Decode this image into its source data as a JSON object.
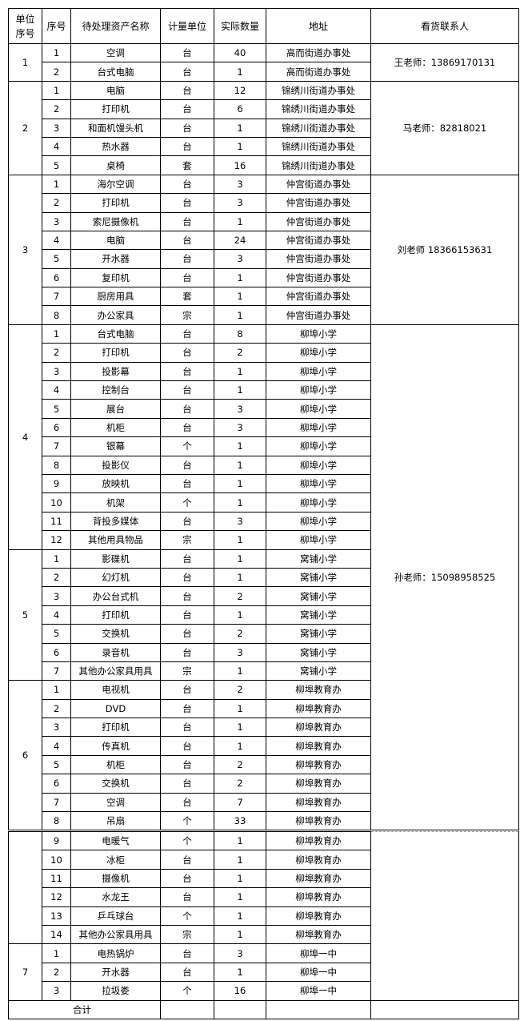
{
  "headers": [
    "单位\n序号",
    "序号",
    "待处理资产名称",
    "计量单位",
    "实际数量",
    "地址",
    "看货联系人"
  ],
  "groups": [
    {
      "unit": "1",
      "contact": "王老师：13869170131",
      "items": [
        [
          "1",
          "空调",
          "台",
          "40",
          "高而街道办事处"
        ],
        [
          "2",
          "台式电脑",
          "台",
          "1",
          "高而街道办事处"
        ]
      ]
    },
    {
      "unit": "2",
      "contact": "马老师：82818021",
      "items": [
        [
          "1",
          "电脑",
          "台",
          "12",
          "锦绣川街道办事处"
        ],
        [
          "2",
          "打印机",
          "台",
          "6",
          "锦绣川街道办事处"
        ],
        [
          "3",
          "和面机馒头机",
          "台",
          "1",
          "锦绣川街道办事处"
        ],
        [
          "4",
          "热水器",
          "台",
          "1",
          "锦绣川街道办事处"
        ],
        [
          "5",
          "桌椅",
          "套",
          "16",
          "锦绣川街道办事处"
        ]
      ]
    },
    {
      "unit": "3",
      "contact": "刘老师 18366153631",
      "items": [
        [
          "1",
          "海尔空调",
          "台",
          "3",
          "仲宫街道办事处"
        ],
        [
          "2",
          "打印机",
          "台",
          "3",
          "仲宫街道办事处"
        ],
        [
          "3",
          "索尼摄像机",
          "台",
          "1",
          "仲宫街道办事处"
        ],
        [
          "4",
          "电脑",
          "台",
          "24",
          "仲宫街道办事处"
        ],
        [
          "5",
          "开水器",
          "台",
          "3",
          "仲宫街道办事处"
        ],
        [
          "6",
          "复印机",
          "台",
          "1",
          "仲宫街道办事处"
        ],
        [
          "7",
          "厨房用具",
          "套",
          "1",
          "仲宫街道办事处"
        ],
        [
          "8",
          "办公家具",
          "宗",
          "1",
          "仲宫街道办事处"
        ]
      ]
    },
    {
      "unit": "4",
      "contact": "孙老师：15098958525",
      "items": [
        [
          "1",
          "台式电脑",
          "台",
          "8",
          "柳埠小学"
        ],
        [
          "2",
          "打印机",
          "台",
          "2",
          "柳埠小学"
        ],
        [
          "3",
          "投影幕",
          "台",
          "1",
          "柳埠小学"
        ],
        [
          "4",
          "控制台",
          "台",
          "1",
          "柳埠小学"
        ],
        [
          "5",
          "展台",
          "台",
          "3",
          "柳埠小学"
        ],
        [
          "6",
          "机柜",
          "台",
          "3",
          "柳埠小学"
        ],
        [
          "7",
          "银幕",
          "个",
          "1",
          "柳埠小学"
        ],
        [
          "8",
          "投影仪",
          "台",
          "1",
          "柳埠小学"
        ],
        [
          "9",
          "放映机",
          "台",
          "1",
          "柳埠小学"
        ],
        [
          "10",
          "机架",
          "个",
          "1",
          "柳埠小学"
        ],
        [
          "11",
          "背投多媒体",
          "台",
          "3",
          "柳埠小学"
        ],
        [
          "12",
          "其他用具物品",
          "宗",
          "1",
          "柳埠小学"
        ]
      ]
    },
    {
      "unit": "5",
      "items": [
        [
          "1",
          "影碟机",
          "台",
          "1",
          "窝铺小学"
        ],
        [
          "2",
          "幻灯机",
          "台",
          "1",
          "窝铺小学"
        ],
        [
          "3",
          "办公台式机",
          "台",
          "2",
          "窝铺小学"
        ],
        [
          "4",
          "打印机",
          "台",
          "1",
          "窝铺小学"
        ],
        [
          "5",
          "交换机",
          "台",
          "2",
          "窝铺小学"
        ],
        [
          "6",
          "录音机",
          "台",
          "3",
          "窝铺小学"
        ],
        [
          "7",
          "其他办公家具用具",
          "宗",
          "1",
          "窝铺小学"
        ]
      ]
    },
    {
      "unit": "6",
      "items": [
        [
          "1",
          "电视机",
          "台",
          "2",
          "柳埠教育办"
        ],
        [
          "2",
          "DVD",
          "台",
          "1",
          "柳埠教育办"
        ],
        [
          "3",
          "打印机",
          "台",
          "1",
          "柳埠教育办"
        ],
        [
          "4",
          "传真机",
          "台",
          "1",
          "柳埠教育办"
        ],
        [
          "5",
          "机柜",
          "台",
          "2",
          "柳埠教育办"
        ],
        [
          "6",
          "交换机",
          "台",
          "2",
          "柳埠教育办"
        ],
        [
          "7",
          "空调",
          "台",
          "7",
          "柳埠教育办"
        ],
        [
          "8",
          "吊扇",
          "个",
          "33",
          "柳埠教育办"
        ]
      ]
    },
    {
      "unit": "",
      "items": [
        [
          "9",
          "电暖气",
          "个",
          "1",
          "柳埠教育办"
        ],
        [
          "10",
          "冰柜",
          "台",
          "1",
          "柳埠教育办"
        ],
        [
          "11",
          "摄像机",
          "台",
          "1",
          "柳埠教育办"
        ],
        [
          "12",
          "水龙王",
          "台",
          "1",
          "柳埠教育办"
        ],
        [
          "13",
          "乒乓球台",
          "个",
          "1",
          "柳埠教育办"
        ],
        [
          "14",
          "其他办公家具用具",
          "宗",
          "1",
          "柳埠教育办"
        ]
      ]
    },
    {
      "unit": "7",
      "items": [
        [
          "1",
          "电热锅炉",
          "台",
          "3",
          "柳埠一中"
        ],
        [
          "2",
          "开水器",
          "台",
          "1",
          "柳埠一中"
        ],
        [
          "3",
          "拉圾娄",
          "个",
          "16",
          "柳埠一中"
        ]
      ]
    }
  ],
  "total_label": "合计"
}
